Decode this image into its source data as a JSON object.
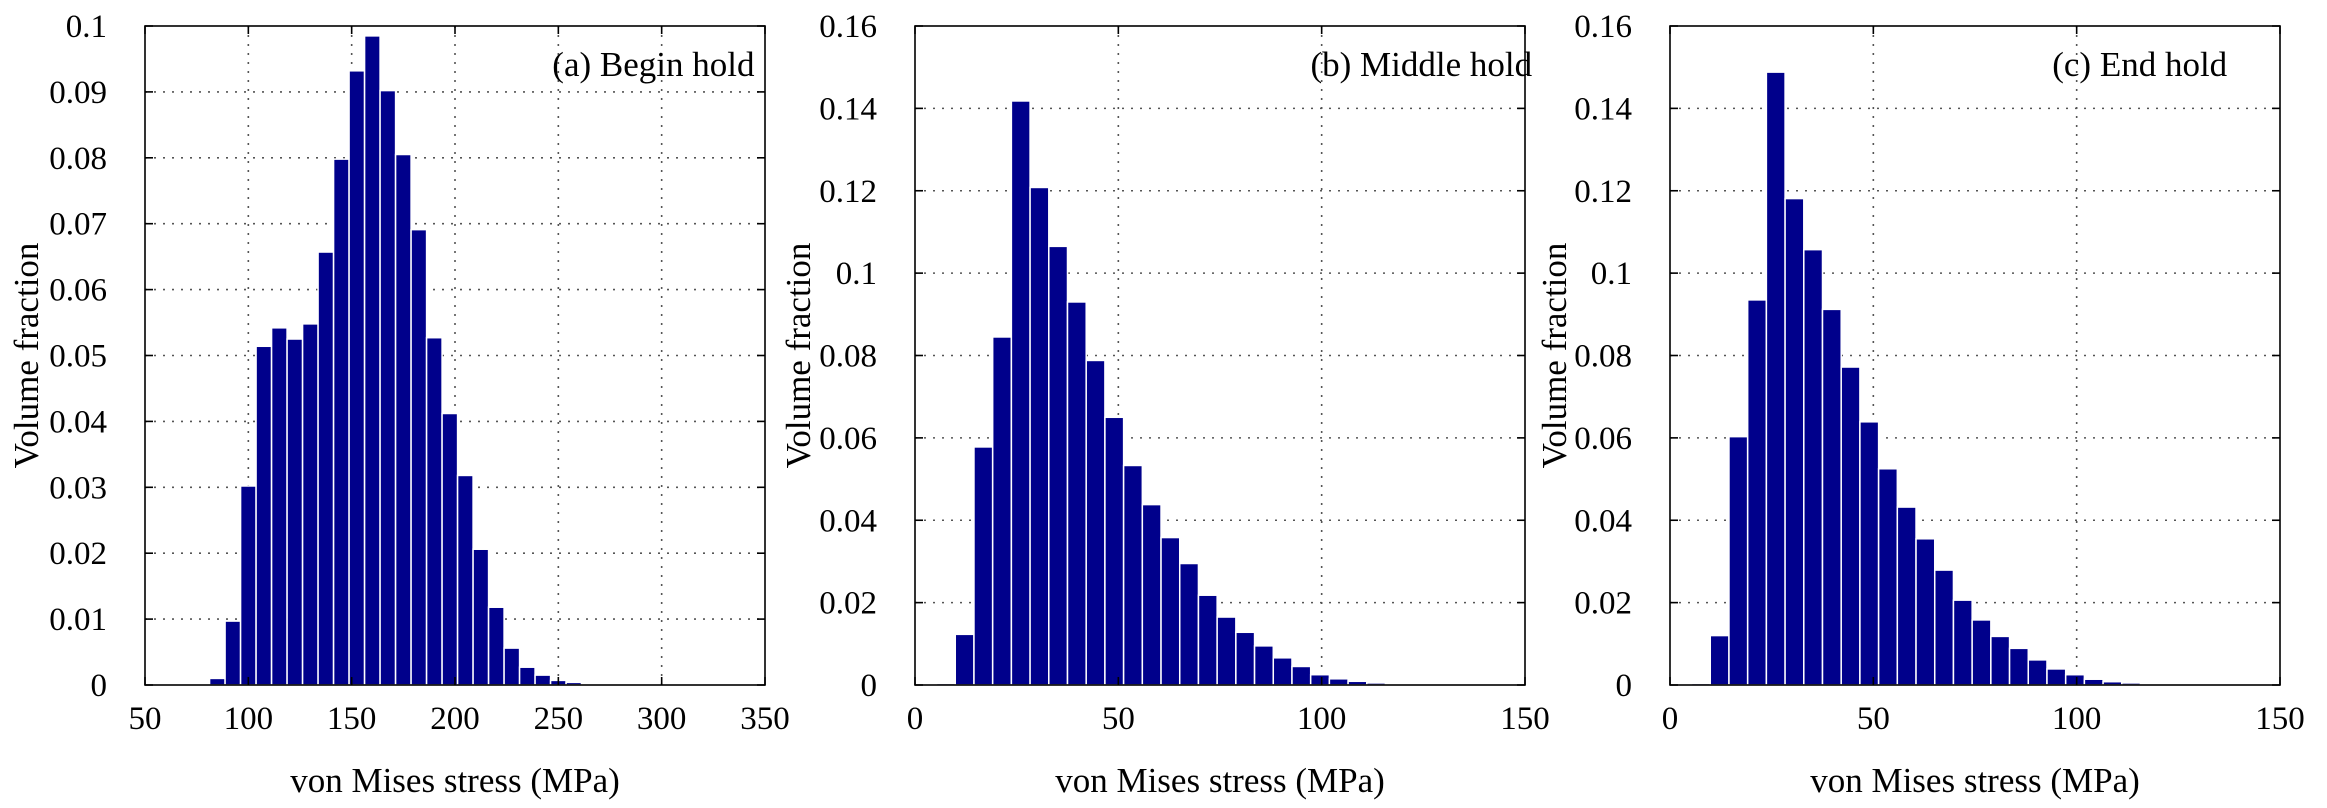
{
  "figure": {
    "background": "#ffffff",
    "bar_color": "#00008b"
  },
  "chart_data": [
    {
      "type": "bar",
      "annotation": "(a) Begin hold",
      "xlabel": "von Mises stress (MPa)",
      "ylabel": "Volume fraction",
      "xlim": [
        50,
        350
      ],
      "ylim": [
        0,
        0.1
      ],
      "grid": true,
      "bin_width": 7.5,
      "xticks": [
        50,
        100,
        150,
        200,
        250,
        300,
        350
      ],
      "xtick_labels": [
        "50",
        "100",
        "150",
        "200",
        "250",
        "300",
        "350"
      ],
      "yticks": [
        0,
        0.01,
        0.02,
        0.03,
        0.04,
        0.05,
        0.06,
        0.07,
        0.08,
        0.09,
        0.1
      ],
      "ytick_labels": [
        "0",
        "0.01",
        "0.02",
        "0.03",
        "0.04",
        "0.05",
        "0.06",
        "0.07",
        "0.08",
        "0.09",
        "0.1"
      ],
      "x": [
        85,
        92.5,
        100,
        107.5,
        115,
        122.5,
        130,
        137.5,
        145,
        152.5,
        160,
        167.5,
        175,
        182.5,
        190,
        197.5,
        205,
        212.5,
        220,
        227.5,
        235,
        242.5,
        250,
        257.5,
        265,
        272.5,
        280
      ],
      "values": [
        0.001,
        0.0097,
        0.0302,
        0.0514,
        0.0542,
        0.0525,
        0.0548,
        0.0657,
        0.0798,
        0.0932,
        0.0985,
        0.0902,
        0.0805,
        0.0691,
        0.0527,
        0.0412,
        0.0318,
        0.0206,
        0.0118,
        0.0056,
        0.0027,
        0.0015,
        0.0007,
        0.0004,
        0.0002,
        0.0001,
        0.0001
      ]
    },
    {
      "type": "bar",
      "annotation": "(b) Middle hold",
      "xlabel": "von Mises stress (MPa)",
      "ylabel": "Volume fraction",
      "xlim": [
        0,
        150
      ],
      "ylim": [
        0,
        0.16
      ],
      "grid": true,
      "bin_width": 4.6,
      "xticks": [
        0,
        50,
        100,
        150
      ],
      "xtick_labels": [
        "0",
        "50",
        "100",
        "150"
      ],
      "yticks": [
        0,
        0.02,
        0.04,
        0.06,
        0.08,
        0.1,
        0.12,
        0.14,
        0.16
      ],
      "ytick_labels": [
        "0",
        "0.02",
        "0.04",
        "0.06",
        "0.08",
        "0.1",
        "0.12",
        "0.14",
        "0.16"
      ],
      "x": [
        3,
        7.6,
        12.2,
        16.8,
        21.4,
        26,
        30.6,
        35.2,
        39.8,
        44.4,
        49,
        53.6,
        58.2,
        62.8,
        67.4,
        72,
        76.6,
        81.2,
        85.8,
        90.4,
        95,
        99.6,
        104.2,
        108.8,
        113.4,
        118,
        122.6,
        127.2,
        131.8,
        136.4
      ],
      "values": [
        0.0003,
        0.0004,
        0.0123,
        0.0578,
        0.0845,
        0.1418,
        0.1208,
        0.1065,
        0.093,
        0.0788,
        0.065,
        0.0533,
        0.0438,
        0.0358,
        0.0295,
        0.0218,
        0.0165,
        0.0128,
        0.0095,
        0.0066,
        0.0045,
        0.0025,
        0.0015,
        0.0009,
        0.0005,
        0.0003,
        0.0002,
        0.0002,
        0.0001,
        0.0001
      ]
    },
    {
      "type": "bar",
      "annotation": "(c) End hold",
      "xlabel": "von Mises stress (MPa)",
      "ylabel": "Volume fraction",
      "xlim": [
        0,
        150
      ],
      "ylim": [
        0,
        0.16
      ],
      "grid": true,
      "bin_width": 4.6,
      "xticks": [
        0,
        50,
        100,
        150
      ],
      "xtick_labels": [
        "0",
        "50",
        "100",
        "150"
      ],
      "yticks": [
        0,
        0.02,
        0.04,
        0.06,
        0.08,
        0.1,
        0.12,
        0.14,
        0.16
      ],
      "ytick_labels": [
        "0",
        "0.02",
        "0.04",
        "0.06",
        "0.08",
        "0.1",
        "0.12",
        "0.14",
        "0.16"
      ],
      "x": [
        3,
        7.6,
        12.2,
        16.8,
        21.4,
        26,
        30.6,
        35.2,
        39.8,
        44.4,
        49,
        53.6,
        58.2,
        62.8,
        67.4,
        72,
        76.6,
        81.2,
        85.8,
        90.4,
        95,
        99.6,
        104.2,
        108.8,
        113.4,
        118,
        122.6,
        127.2,
        131.8,
        136.4
      ],
      "values": [
        0.0003,
        0.0004,
        0.012,
        0.0603,
        0.0935,
        0.1488,
        0.1181,
        0.1057,
        0.0912,
        0.0772,
        0.0639,
        0.0525,
        0.0432,
        0.0355,
        0.0279,
        0.0206,
        0.0158,
        0.0118,
        0.0089,
        0.0061,
        0.0039,
        0.0025,
        0.0014,
        0.0008,
        0.0005,
        0.0003,
        0.0002,
        0.0002,
        0.0001,
        0.0001
      ]
    }
  ]
}
